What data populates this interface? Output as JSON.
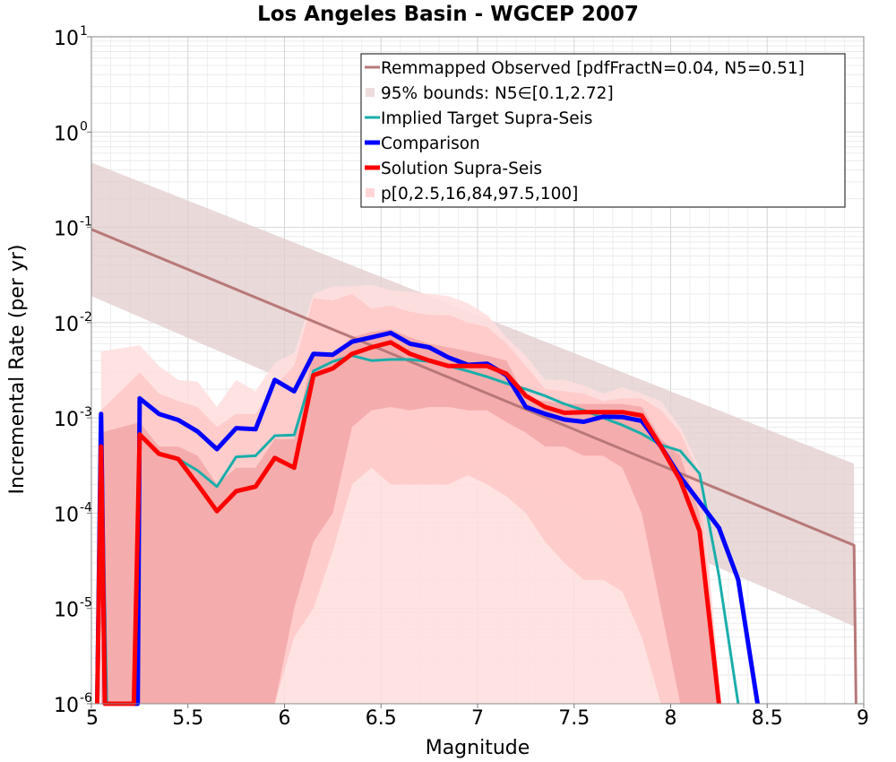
{
  "chart_data": {
    "type": "line",
    "title": "Los Angeles Basin - WGCEP 2007",
    "xlabel": "Magnitude",
    "ylabel": "Incremental Rate (per yr)",
    "xlim": [
      5,
      9
    ],
    "ylim": [
      1e-06,
      10
    ],
    "yscale": "log",
    "grid": true,
    "legend_position": "top-right",
    "x_ticks": [
      5,
      5.5,
      6,
      6.5,
      7,
      7.5,
      8,
      8.5,
      9
    ],
    "x_tick_labels": [
      "5",
      "5.5",
      "6",
      "6.5",
      "7",
      "7.5",
      "8",
      "8.5",
      "9"
    ],
    "y_ticks": [
      {
        "value": 1e-06,
        "base": "10",
        "exp": "-6"
      },
      {
        "value": 1e-05,
        "base": "10",
        "exp": "-5"
      },
      {
        "value": 0.0001,
        "base": "10",
        "exp": "-4"
      },
      {
        "value": 0.001,
        "base": "10",
        "exp": "-3"
      },
      {
        "value": 0.01,
        "base": "10",
        "exp": "-2"
      },
      {
        "value": 0.1,
        "base": "10",
        "exp": "-1"
      },
      {
        "value": 1,
        "base": "10",
        "exp": "0"
      },
      {
        "value": 10,
        "base": "10",
        "exp": "1"
      }
    ],
    "legend": [
      {
        "label": "Remmapped Observed [pdfFractN=0.04, N5=0.51]",
        "kind": "line",
        "color": "#b87878",
        "width": 3
      },
      {
        "label": "95% bounds: N5∈[0.1,2.72]",
        "kind": "band",
        "color": "#ecdcdc"
      },
      {
        "label": "Implied Target Supra-Seis",
        "kind": "line",
        "color": "#1aaeaa",
        "width": 3
      },
      {
        "label": "Comparison",
        "kind": "line",
        "color": "#0000ff",
        "width": 5
      },
      {
        "label": "Solution Supra-Seis",
        "kind": "line",
        "color": "#ff0000",
        "width": 5
      },
      {
        "label": "p[0,2.5,16,84,97.5,100]",
        "kind": "band",
        "color": "#ffd6d6"
      }
    ],
    "bands": [
      {
        "name": "95% bounds: N5∈[0.1,2.72]",
        "color": "#e2cccc",
        "opacity": 0.75,
        "x": [
          5.0,
          8.95
        ],
        "upper": [
          0.48,
          0.00033
        ],
        "lower": [
          0.019,
          6.5e-06
        ],
        "end_drop": true
      },
      {
        "name": "p[0,100]",
        "color": "#ffdede",
        "opacity": 0.85,
        "x": [
          5.05,
          5.25,
          5.35,
          5.45,
          5.55,
          5.65,
          5.75,
          5.85,
          5.95,
          6.05,
          6.15,
          6.25,
          6.35,
          6.45,
          6.55,
          6.65,
          6.75,
          6.85,
          6.95,
          7.05,
          7.15,
          7.25,
          7.35,
          7.45,
          7.55,
          7.65,
          7.75,
          7.85,
          7.95,
          8.05,
          8.15,
          8.25
        ],
        "upper": [
          0.005,
          0.0058,
          0.0035,
          0.0025,
          0.0024,
          0.0013,
          0.0025,
          0.0019,
          0.0038,
          0.0048,
          0.02,
          0.024,
          0.024,
          0.025,
          0.022,
          0.021,
          0.02,
          0.019,
          0.016,
          0.012,
          0.007,
          0.0045,
          0.0025,
          0.0025,
          0.0022,
          0.0018,
          0.0021,
          0.0018,
          0.0015,
          0.0008,
          0.0003,
          2e-06
        ],
        "lower": [
          1e-06,
          1e-06,
          1e-06,
          1e-06,
          1e-06,
          1e-06,
          1e-06,
          1e-06,
          1e-06,
          1e-06,
          1e-06,
          1e-06,
          1e-06,
          1e-06,
          1e-06,
          1e-06,
          1e-06,
          1e-06,
          1e-06,
          1e-06,
          1e-06,
          1e-06,
          1e-06,
          1e-06,
          1e-06,
          1e-06,
          1e-06,
          1e-06,
          1e-06,
          1e-06,
          1e-06,
          1e-06
        ]
      },
      {
        "name": "p[2.5,97.5]",
        "color": "#ffc8c8",
        "opacity": 0.85,
        "x": [
          5.05,
          5.25,
          5.35,
          5.45,
          5.55,
          5.65,
          5.75,
          5.85,
          5.95,
          6.05,
          6.15,
          6.25,
          6.35,
          6.45,
          6.55,
          6.65,
          6.75,
          6.85,
          6.95,
          7.05,
          7.15,
          7.25,
          7.35,
          7.45,
          7.55,
          7.65,
          7.75,
          7.85,
          7.95,
          8.05,
          8.15,
          8.25
        ],
        "upper": [
          0.0012,
          0.003,
          0.0018,
          0.0015,
          0.0013,
          0.0008,
          0.0011,
          0.0011,
          0.0022,
          0.0035,
          0.018,
          0.017,
          0.02,
          0.014,
          0.015,
          0.013,
          0.012,
          0.012,
          0.01,
          0.009,
          0.006,
          0.0035,
          0.002,
          0.0019,
          0.0018,
          0.0015,
          0.0016,
          0.0016,
          0.0012,
          0.0007,
          0.00025,
          1.5e-06
        ],
        "lower": [
          1e-06,
          1e-06,
          1e-06,
          1e-06,
          1e-06,
          1e-06,
          1e-06,
          1e-06,
          1e-06,
          5e-06,
          1e-05,
          4e-05,
          0.0002,
          0.0003,
          0.0002,
          0.0002,
          0.0002,
          0.0002,
          0.00025,
          0.0002,
          0.00015,
          0.0001,
          5e-05,
          3e-05,
          2e-05,
          2e-05,
          1.5e-05,
          5e-06,
          1e-06,
          1e-06,
          1e-06,
          1e-06
        ]
      },
      {
        "name": "p[16,84]",
        "color": "#f2a4a4",
        "opacity": 0.8,
        "x": [
          5.05,
          5.25,
          5.35,
          5.45,
          5.55,
          5.65,
          5.75,
          5.85,
          5.95,
          6.05,
          6.15,
          6.25,
          6.35,
          6.45,
          6.55,
          6.65,
          6.75,
          6.85,
          6.95,
          7.05,
          7.15,
          7.25,
          7.35,
          7.45,
          7.55,
          7.65,
          7.75,
          7.85,
          7.95,
          8.05,
          8.15,
          8.25
        ],
        "upper": [
          0.0007,
          0.0009,
          0.0005,
          0.0005,
          0.0004,
          0.0002,
          0.0003,
          0.0003,
          0.0006,
          0.0006,
          0.005,
          0.0045,
          0.007,
          0.008,
          0.0085,
          0.007,
          0.006,
          0.0055,
          0.005,
          0.0045,
          0.004,
          0.0016,
          0.0015,
          0.0014,
          0.0014,
          0.0014,
          0.0014,
          0.0013,
          0.0006,
          0.0004,
          0.0001,
          1.2e-06
        ],
        "lower": [
          1e-06,
          1e-06,
          1e-06,
          1e-06,
          1e-06,
          1e-06,
          1e-06,
          1e-06,
          1e-06,
          1e-05,
          5e-05,
          0.0001,
          0.0008,
          0.0012,
          0.0013,
          0.0012,
          0.0013,
          0.0013,
          0.0012,
          0.0012,
          0.0009,
          0.0007,
          0.0005,
          0.0005,
          0.0004,
          0.0004,
          0.0003,
          0.0001,
          1e-05,
          1e-06,
          1e-06,
          1e-06
        ]
      }
    ],
    "series": [
      {
        "name": "Remmapped Observed [pdfFractN=0.04, N5=0.51]",
        "color": "#b87878",
        "width": 3,
        "x": [
          5.0,
          8.95,
          8.96
        ],
        "y": [
          0.095,
          4.6e-05,
          1e-06
        ]
      },
      {
        "name": "Implied Target Supra-Seis",
        "color": "#1aaeaa",
        "width": 3,
        "x": [
          5.03,
          5.05,
          5.08,
          5.23,
          5.25,
          5.35,
          5.45,
          5.55,
          5.65,
          5.75,
          5.85,
          5.95,
          6.05,
          6.15,
          6.25,
          6.35,
          6.45,
          6.55,
          6.65,
          6.75,
          6.85,
          6.95,
          7.05,
          7.15,
          7.25,
          7.35,
          7.45,
          7.55,
          7.65,
          7.75,
          7.85,
          7.95,
          8.05,
          8.15,
          8.25,
          8.35
        ],
        "y": [
          1e-06,
          0.0011,
          1e-06,
          1e-06,
          0.00065,
          0.00042,
          0.00037,
          0.00028,
          0.00019,
          0.00039,
          0.0004,
          0.00065,
          0.00066,
          0.0031,
          0.0039,
          0.0045,
          0.004,
          0.0041,
          0.0041,
          0.0039,
          0.0035,
          0.0031,
          0.0027,
          0.0023,
          0.002,
          0.0017,
          0.0014,
          0.0012,
          0.001,
          0.00084,
          0.00068,
          0.00052,
          0.00045,
          0.00026,
          2.2e-05,
          1e-06
        ]
      },
      {
        "name": "Comparison",
        "color": "#0000ff",
        "width": 5,
        "x": [
          5.03,
          5.05,
          5.07,
          5.24,
          5.25,
          5.35,
          5.45,
          5.55,
          5.65,
          5.75,
          5.85,
          5.95,
          6.05,
          6.15,
          6.25,
          6.35,
          6.45,
          6.55,
          6.65,
          6.75,
          6.85,
          6.95,
          7.05,
          7.15,
          7.25,
          7.35,
          7.45,
          7.55,
          7.65,
          7.75,
          7.85,
          7.95,
          8.05,
          8.15,
          8.25,
          8.35,
          8.45
        ],
        "y": [
          1e-06,
          0.0011,
          1e-06,
          1e-06,
          0.0016,
          0.0011,
          0.00095,
          0.00072,
          0.00047,
          0.00078,
          0.00076,
          0.0025,
          0.0019,
          0.0047,
          0.0046,
          0.0063,
          0.007,
          0.0078,
          0.006,
          0.0055,
          0.0043,
          0.0036,
          0.0037,
          0.0028,
          0.0013,
          0.0011,
          0.00096,
          0.00091,
          0.00103,
          0.00102,
          0.00093,
          0.0005,
          0.00024,
          0.00013,
          7e-05,
          2e-05,
          1e-06
        ]
      },
      {
        "name": "Solution Supra-Seis",
        "color": "#ff0000",
        "width": 5,
        "x": [
          5.03,
          5.05,
          5.07,
          5.22,
          5.25,
          5.35,
          5.45,
          5.55,
          5.65,
          5.75,
          5.85,
          5.95,
          6.05,
          6.15,
          6.25,
          6.35,
          6.45,
          6.55,
          6.65,
          6.75,
          6.85,
          6.95,
          7.05,
          7.15,
          7.25,
          7.35,
          7.45,
          7.55,
          7.65,
          7.75,
          7.85,
          7.95,
          8.05,
          8.15,
          8.25
        ],
        "y": [
          1e-06,
          0.0005,
          1e-06,
          1e-06,
          0.00067,
          0.00042,
          0.00037,
          0.0002,
          0.000105,
          0.00017,
          0.00019,
          0.00038,
          0.0003,
          0.0028,
          0.0033,
          0.0047,
          0.0055,
          0.0062,
          0.0047,
          0.004,
          0.0035,
          0.0035,
          0.0035,
          0.0029,
          0.0017,
          0.0013,
          0.00113,
          0.00115,
          0.00115,
          0.00115,
          0.00106,
          0.0005,
          0.00022,
          6.5e-05,
          1e-06
        ]
      }
    ]
  }
}
